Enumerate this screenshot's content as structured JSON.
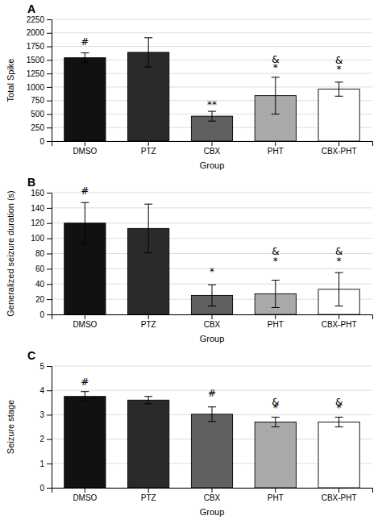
{
  "chart_data": [
    {
      "type": "bar",
      "title": "A",
      "categories": [
        "DMSO",
        "PTZ",
        "CBX",
        "PHT",
        "CBX-PHT"
      ],
      "values": [
        1540,
        1640,
        460,
        840,
        960
      ],
      "errors": [
        90,
        270,
        90,
        340,
        130
      ],
      "colors": [
        "#111111",
        "#2a2a2a",
        "#606060",
        "#aaaaaa",
        "#ffffff"
      ],
      "x_label": "Group",
      "y_label": "Total Spike",
      "ylim": [
        0,
        2250
      ],
      "yticks": [
        0,
        250,
        500,
        750,
        1000,
        1250,
        1500,
        1750,
        2000,
        2250
      ],
      "grid": true,
      "annotations": [
        {
          "text": "#",
          "x": "DMSO",
          "y": 1780
        },
        {
          "text": "**",
          "x": "CBX",
          "y": 610
        },
        {
          "text": "&",
          "x": "PHT",
          "y": 1450
        },
        {
          "text": "*",
          "x": "PHT",
          "y": 1290
        },
        {
          "text": "&",
          "x": "CBX-PHT",
          "y": 1430
        },
        {
          "text": "*",
          "x": "CBX-PHT",
          "y": 1260
        }
      ]
    },
    {
      "type": "bar",
      "title": "B",
      "categories": [
        "DMSO",
        "PTZ",
        "CBX",
        "PHT",
        "CBX-PHT"
      ],
      "values": [
        120,
        113,
        25,
        27,
        33
      ],
      "errors": [
        27,
        32,
        14,
        18,
        22
      ],
      "colors": [
        "#111111",
        "#2a2a2a",
        "#606060",
        "#aaaaaa",
        "#ffffff"
      ],
      "x_label": "Group",
      "y_label": "Generalized seizure duration (s)",
      "ylim": [
        0,
        160
      ],
      "yticks": [
        0,
        20,
        40,
        60,
        80,
        100,
        120,
        140,
        160
      ],
      "grid": true,
      "annotations": [
        {
          "text": "#",
          "x": "DMSO",
          "y": 158
        },
        {
          "text": "*",
          "x": "CBX",
          "y": 52
        },
        {
          "text": "&",
          "x": "PHT",
          "y": 78
        },
        {
          "text": "*",
          "x": "PHT",
          "y": 66
        },
        {
          "text": "&",
          "x": "CBX-PHT",
          "y": 78
        },
        {
          "text": "*",
          "x": "CBX-PHT",
          "y": 66
        }
      ]
    },
    {
      "type": "bar",
      "title": "C",
      "categories": [
        "DMSO",
        "PTZ",
        "CBX",
        "PHT",
        "CBX-PHT"
      ],
      "values": [
        3.75,
        3.6,
        3.02,
        2.7,
        2.7
      ],
      "errors": [
        0.2,
        0.15,
        0.3,
        0.2,
        0.2
      ],
      "colors": [
        "#111111",
        "#2a2a2a",
        "#606060",
        "#aaaaaa",
        "#ffffff"
      ],
      "x_label": "Group",
      "y_label": "Seizure stage",
      "ylim": [
        0,
        5
      ],
      "yticks": [
        0,
        1,
        2,
        3,
        4,
        5
      ],
      "grid": true,
      "annotations": [
        {
          "text": "#",
          "x": "DMSO",
          "y": 4.22
        },
        {
          "text": "#",
          "x": "CBX",
          "y": 3.75
        },
        {
          "text": "&",
          "x": "PHT",
          "y": 3.38
        },
        {
          "text": "*",
          "x": "PHT",
          "y": 3.15
        },
        {
          "text": "&",
          "x": "CBX-PHT",
          "y": 3.38
        },
        {
          "text": "*",
          "x": "CBX-PHT",
          "y": 3.15
        }
      ]
    }
  ]
}
